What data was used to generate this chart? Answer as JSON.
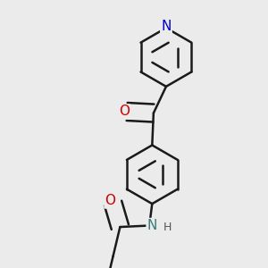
{
  "bg_color": "#ebebeb",
  "bond_color": "#1a1a1a",
  "bond_width": 1.8,
  "atom_colors": {
    "N_pyridine": "#0000cc",
    "N_amide": "#3a7a7a",
    "O": "#cc0000",
    "C": "#1a1a1a",
    "H": "#555555"
  },
  "font_size": 10,
  "fig_size": [
    3.0,
    3.0
  ],
  "dpi": 100
}
